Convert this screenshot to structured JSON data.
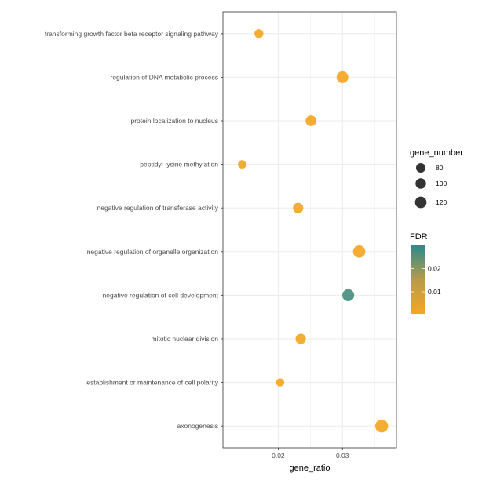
{
  "chart_data": {
    "type": "scatter",
    "xlabel": "gene_ratio",
    "ylabel": "",
    "xlim": [
      0.0114,
      0.0384
    ],
    "xticks": [
      0.02,
      0.03
    ],
    "xtick_labels": [
      "0.02",
      "0.03"
    ],
    "grid": true,
    "legend_position": "right",
    "categories": [
      "transforming growth factor beta receptor signaling pathway",
      "regulation of DNA metabolic process",
      "protein localization to nucleus",
      "peptidyl-lysine methylation",
      "negative regulation of transferase activity",
      "negative regulation of organelle organization",
      "negative regulation of cell development",
      "mitotic nuclear division",
      "establishment or maintenance of cell polarity",
      "axonogenesis"
    ],
    "points": [
      {
        "term": "transforming growth factor beta receptor signaling pathway",
        "gene_ratio": 0.017,
        "gene_number": 73,
        "fdr": 0.0005
      },
      {
        "term": "regulation of DNA metabolic process",
        "gene_ratio": 0.03,
        "gene_number": 125,
        "fdr": 0.0007
      },
      {
        "term": "protein localization to nucleus",
        "gene_ratio": 0.0251,
        "gene_number": 105,
        "fdr": 0.0006
      },
      {
        "term": "peptidyl-lysine methylation",
        "gene_ratio": 0.0144,
        "gene_number": 65,
        "fdr": 0.002
      },
      {
        "term": "negative regulation of transferase activity",
        "gene_ratio": 0.0231,
        "gene_number": 96,
        "fdr": 0.001
      },
      {
        "term": "negative regulation of organelle organization",
        "gene_ratio": 0.0326,
        "gene_number": 135,
        "fdr": 0.0005
      },
      {
        "term": "negative regulation of cell development",
        "gene_ratio": 0.0309,
        "gene_number": 128,
        "fdr": 0.027
      },
      {
        "term": "mitotic nuclear division",
        "gene_ratio": 0.0235,
        "gene_number": 97,
        "fdr": 0.0009
      },
      {
        "term": "establishment or maintenance of cell polarity",
        "gene_ratio": 0.0203,
        "gene_number": 60,
        "fdr": 0.0005
      },
      {
        "term": "axonogenesis",
        "gene_ratio": 0.0361,
        "gene_number": 150,
        "fdr": 0.0005
      }
    ],
    "size_legend": {
      "title": "gene_number",
      "values": [
        80,
        100,
        120
      ],
      "labels": [
        "80",
        "100",
        "120"
      ]
    },
    "color_legend": {
      "title": "FDR",
      "range": [
        0.0005,
        0.03
      ],
      "ticks": [
        0.01,
        0.02
      ],
      "tick_labels": [
        "0.01",
        "0.02"
      ],
      "low_color": "#f5a623",
      "high_color": "#2a8c8c"
    }
  }
}
